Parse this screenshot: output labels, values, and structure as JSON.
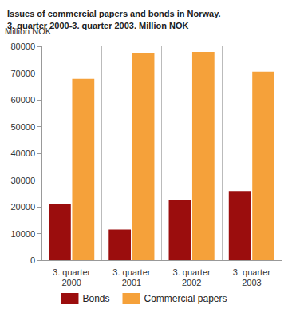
{
  "chart_data": {
    "type": "bar",
    "title": "Issues of commercial papers and bonds in Norway.\n3. quarter 2000-3. quarter 2003. Million NOK",
    "y_label": "Million NOK",
    "categories": [
      "3. quarter\n2000",
      "3. quarter\n2001",
      "3. quarter\n2002",
      "3. quarter\n2003"
    ],
    "series": [
      {
        "name": "Bonds",
        "color": "#9b0d0d",
        "values": [
          21200,
          11500,
          22700,
          25900
        ]
      },
      {
        "name": "Commercial papers",
        "color": "#f5a13a",
        "values": [
          67800,
          77400,
          77900,
          70500
        ]
      }
    ],
    "ylim": [
      0,
      80000
    ],
    "yticks": [
      0,
      10000,
      20000,
      30000,
      40000,
      50000,
      60000,
      70000,
      80000
    ],
    "grid": true,
    "legend": "bottom"
  }
}
